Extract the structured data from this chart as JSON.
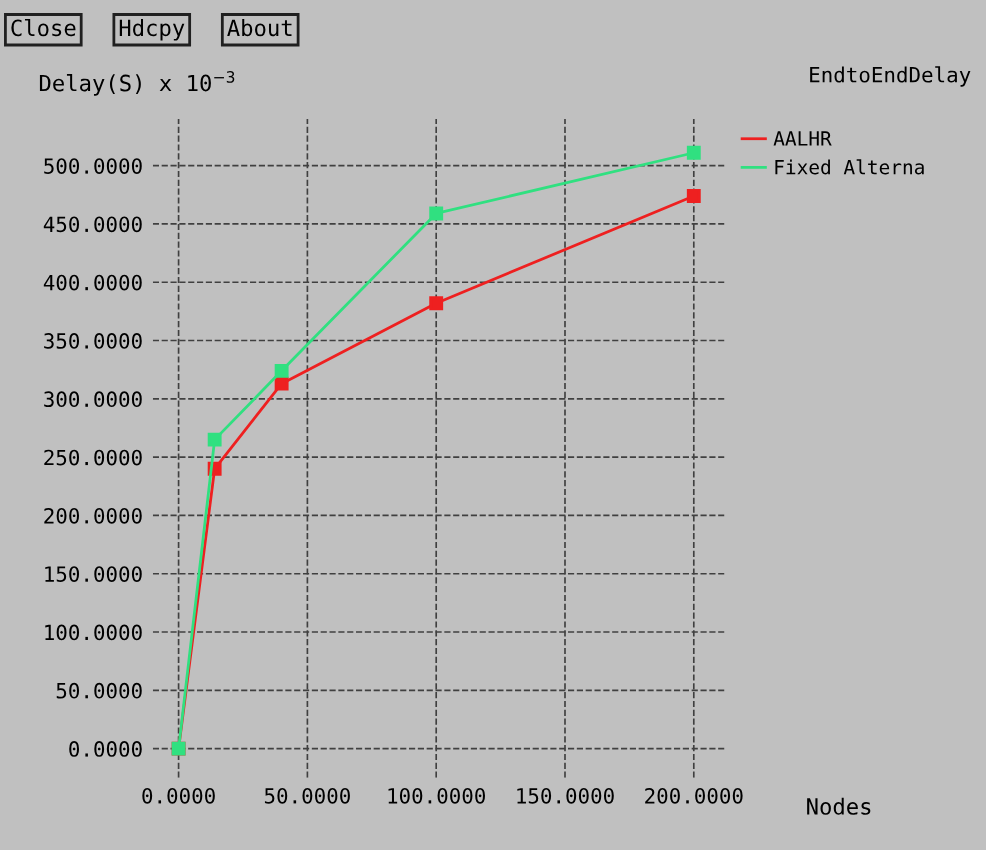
{
  "chart_data": {
    "type": "line",
    "title": "EndtoEndDelay",
    "xlabel": "Nodes",
    "ylabel": "Delay(S) x 10$^{−3}$",
    "annotations": [
      "Close",
      "Hdcpy",
      "About"
    ],
    "x": [
      0,
      14,
      40,
      100,
      200
    ],
    "series": [
      {
        "name": "AALHR",
        "color": "#ee2020",
        "values": [
          0,
          240,
          313,
          382,
          474
        ]
      },
      {
        "name": "Fixed Alterna",
        "color": "#30e080",
        "values": [
          0,
          265,
          324,
          459,
          511
        ]
      }
    ],
    "xlim": [
      -10,
      212
    ],
    "xticks": [
      {
        "value": 0,
        "label": "0.0000"
      },
      {
        "value": 50,
        "label": "50.0000"
      },
      {
        "value": 100,
        "label": "100.0000"
      },
      {
        "value": 150,
        "label": "150.0000"
      },
      {
        "value": 200,
        "label": "200.0000"
      }
    ],
    "ylim": [
      -25,
      540
    ],
    "yticks": [
      {
        "value": 0,
        "label": "0.0000"
      },
      {
        "value": 50,
        "label": "50.0000"
      },
      {
        "value": 100,
        "label": "100.0000"
      },
      {
        "value": 150,
        "label": "150.0000"
      },
      {
        "value": 200,
        "label": "200.0000"
      },
      {
        "value": 250,
        "label": "250.0000"
      },
      {
        "value": 300,
        "label": "300.0000"
      },
      {
        "value": 350,
        "label": "350.0000"
      },
      {
        "value": 400,
        "label": "400.0000"
      },
      {
        "value": 450,
        "label": "450.0000"
      },
      {
        "value": 500,
        "label": "500.0000"
      }
    ],
    "grid": true,
    "legend": "top right",
    "marker": "square",
    "line_style": "solid"
  }
}
